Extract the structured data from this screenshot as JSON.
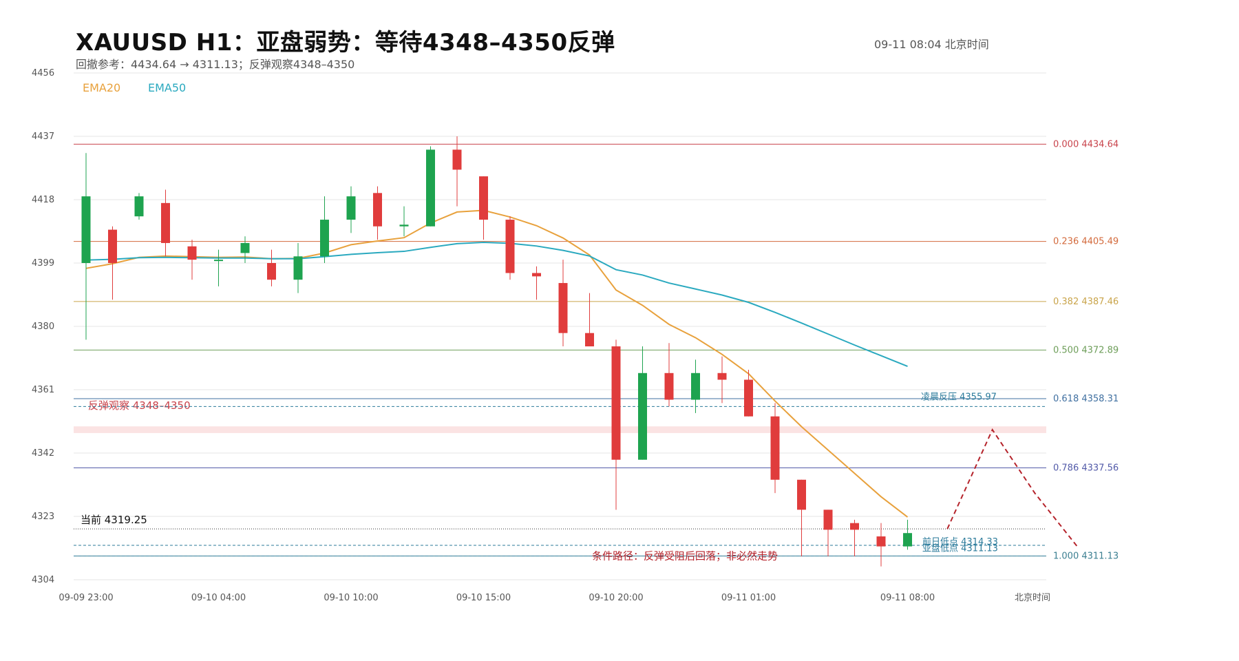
{
  "header": {
    "title": "XAUUSD  H1：亚盘弱势：等待4348–4350反弹",
    "subtitle": "回撤参考：4434.64  →  4311.13；反弹观察4348–4350",
    "timestamp": "09-11  08:04 北京时间"
  },
  "chart_data": {
    "type": "candlestick",
    "title": "XAUUSD  H1：亚盘弱势：等待4348–4350反弹",
    "subtitle": "回撤参考：4434.64  →  4311.13；反弹观察4348–4350",
    "ylim": [
      4304,
      4456
    ],
    "y_ticks": [
      "4456",
      "4437",
      "4418",
      "4399",
      "4380",
      "4361",
      "4342",
      "4323",
      "4304"
    ],
    "x_ticks": [
      {
        "i": 0,
        "label": "09-09 23:00"
      },
      {
        "i": 5,
        "label": "09-10 04:00"
      },
      {
        "i": 10,
        "label": "09-10 10:00"
      },
      {
        "i": 15,
        "label": "09-10 15:00"
      },
      {
        "i": 20,
        "label": "09-10 20:00"
      },
      {
        "i": 25,
        "label": "09-11 01:00"
      },
      {
        "i": 31,
        "label": "09-11 08:00"
      }
    ],
    "x_axis_unit": "北京时间",
    "candles": [
      {
        "o": 4399.0,
        "h": 4432.0,
        "l": 4376.0,
        "c": 4419.0
      },
      {
        "o": 4409.0,
        "h": 4410.0,
        "l": 4388.0,
        "c": 4399.0
      },
      {
        "o": 4413.0,
        "h": 4420.0,
        "l": 4412.0,
        "c": 4419.0
      },
      {
        "o": 4417.0,
        "h": 4421.0,
        "l": 4401.0,
        "c": 4405.0
      },
      {
        "o": 4404.0,
        "h": 4406.0,
        "l": 4394.0,
        "c": 4400.0
      },
      {
        "o": 4400.0,
        "h": 4403.0,
        "l": 4392.0,
        "c": 4400.0
      },
      {
        "o": 4402.0,
        "h": 4407.0,
        "l": 4399.0,
        "c": 4405.0
      },
      {
        "o": 4399.0,
        "h": 4403.0,
        "l": 4392.0,
        "c": 4394.0
      },
      {
        "o": 4394.0,
        "h": 4405.0,
        "l": 4390.0,
        "c": 4401.0
      },
      {
        "o": 4401.0,
        "h": 4419.0,
        "l": 4399.0,
        "c": 4412.0
      },
      {
        "o": 4412.0,
        "h": 4422.0,
        "l": 4408.0,
        "c": 4419.0
      },
      {
        "o": 4420.0,
        "h": 4422.0,
        "l": 4406.0,
        "c": 4410.0
      },
      {
        "o": 4410.0,
        "h": 4416.0,
        "l": 4407.0,
        "c": 4410.5
      },
      {
        "o": 4410.0,
        "h": 4434.0,
        "l": 4410.0,
        "c": 4433.0
      },
      {
        "o": 4433.0,
        "h": 4437.0,
        "l": 4416.0,
        "c": 4427.0
      },
      {
        "o": 4425.0,
        "h": 4425.0,
        "l": 4406.0,
        "c": 4412.0
      },
      {
        "o": 4412.0,
        "h": 4413.0,
        "l": 4394.0,
        "c": 4396.0
      },
      {
        "o": 4396.0,
        "h": 4398.0,
        "l": 4388.0,
        "c": 4395.0
      },
      {
        "o": 4393.0,
        "h": 4400.0,
        "l": 4374.0,
        "c": 4378.0
      },
      {
        "o": 4378.0,
        "h": 4390.0,
        "l": 4374.0,
        "c": 4374.0
      },
      {
        "o": 4374.0,
        "h": 4376.0,
        "l": 4325.0,
        "c": 4340.0
      },
      {
        "o": 4340.0,
        "h": 4374.0,
        "l": 4340.0,
        "c": 4366.0
      },
      {
        "o": 4366.0,
        "h": 4375.0,
        "l": 4356.0,
        "c": 4358.0
      },
      {
        "o": 4358.0,
        "h": 4370.0,
        "l": 4354.0,
        "c": 4366.0
      },
      {
        "o": 4366.0,
        "h": 4371.0,
        "l": 4357.0,
        "c": 4364.0
      },
      {
        "o": 4364.0,
        "h": 4367.0,
        "l": 4353.0,
        "c": 4353.0
      },
      {
        "o": 4353.0,
        "h": 4357.0,
        "l": 4330.0,
        "c": 4334.0
      },
      {
        "o": 4334.0,
        "h": 4334.0,
        "l": 4311.0,
        "c": 4325.0
      },
      {
        "o": 4325.0,
        "h": 4325.0,
        "l": 4311.0,
        "c": 4319.0
      },
      {
        "o": 4321.0,
        "h": 4322.0,
        "l": 4311.0,
        "c": 4319.0
      },
      {
        "o": 4317.0,
        "h": 4321.0,
        "l": 4308.0,
        "c": 4314.0
      },
      {
        "o": 4314.0,
        "h": 4322.0,
        "l": 4313.0,
        "c": 4318.0
      }
    ],
    "series": [
      {
        "name": "EMA20",
        "color": "#e8a13c",
        "values": [
          4397.4,
          4398.8,
          4400.7,
          4401.1,
          4400.9,
          4400.7,
          4400.8,
          4400.3,
          4400.4,
          4402.0,
          4404.5,
          4405.6,
          4406.6,
          4411.0,
          4414.3,
          4414.8,
          4412.8,
          4410.2,
          4406.5,
          4401.4,
          4390.9,
          4386.3,
          4380.6,
          4376.6,
          4371.6,
          4365.8,
          4357.6,
          4349.9,
          4342.9,
          4335.9,
          4328.9,
          4322.8
        ]
      },
      {
        "name": "EMA50",
        "color": "#2aa9bf",
        "values": [
          4399.9,
          4400.1,
          4400.6,
          4400.7,
          4400.6,
          4400.5,
          4400.5,
          4400.3,
          4400.3,
          4400.9,
          4401.6,
          4402.1,
          4402.5,
          4403.7,
          4404.8,
          4405.2,
          4404.9,
          4404.1,
          4402.8,
          4401.1,
          4397.0,
          4395.4,
          4393.0,
          4391.2,
          4389.4,
          4387.2,
          4384.2,
          4381.0,
          4377.7,
          4374.4,
          4371.2,
          4368.0
        ]
      }
    ],
    "fib_levels": [
      {
        "label": "0.000  4434.64",
        "value": 4434.64,
        "color": "#c8434b"
      },
      {
        "label": "0.236  4405.49",
        "value": 4405.49,
        "color": "#d36a3c"
      },
      {
        "label": "0.382  4387.46",
        "value": 4387.46,
        "color": "#c9a44a"
      },
      {
        "label": "0.500  4372.89",
        "value": 4372.89,
        "color": "#6e9e5a"
      },
      {
        "label": "0.618  4358.31",
        "value": 4358.31,
        "color": "#3f6fa0"
      },
      {
        "label": "0.786  4337.56",
        "value": 4337.56,
        "color": "#525aa8"
      },
      {
        "label": "1.000  4311.13",
        "value": 4311.13,
        "color": "#3b7f91"
      }
    ],
    "zone": {
      "label": "反弹观察  4348–4350",
      "low": 4348,
      "high": 4350,
      "color": "#c9434b"
    },
    "reference_lines": [
      {
        "label": "凌晨反压 4355.97",
        "value": 4355.97,
        "color": "#2a7a9a"
      },
      {
        "label": "前日低点 4314.33",
        "value": 4314.33,
        "color": "#2a7a9a"
      },
      {
        "label": "亚盘低点 4311.13",
        "value": 4311.13,
        "color": "#2a7a9a"
      }
    ],
    "current_price": {
      "label": "当前 4319.25",
      "value": 4319.25
    },
    "projection": {
      "label": "条件路径：反弹受阻后回落；非必然走势",
      "points": [
        [
          32.5,
          4319.25
        ],
        [
          34.2,
          4349.0
        ],
        [
          35.8,
          4330.0
        ],
        [
          37.4,
          4314.0
        ]
      ],
      "color": "#b5232b"
    },
    "legend_position": "top-left",
    "grid": true,
    "up_color": "#1ea34f",
    "down_color": "#e03c3c"
  }
}
